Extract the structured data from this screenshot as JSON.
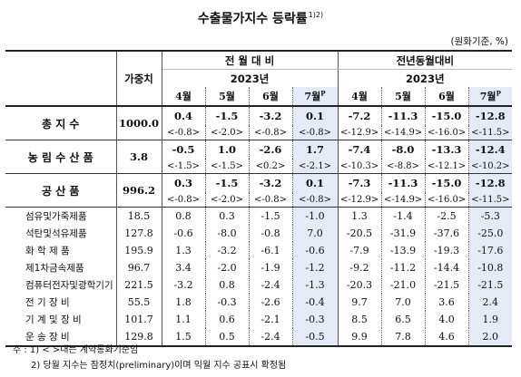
{
  "title": "수출물가지수 등락률",
  "title_sup": "1)2)",
  "unit": "(원화기준, %)",
  "header": {
    "weight_label": "가중치",
    "group1_label": "전 월 대 비",
    "group2_label": "전년동월대비",
    "year1": "2023년",
    "year2": "2023년",
    "months1": [
      "4월",
      "5월",
      "6월",
      "7월"
    ],
    "months2": [
      "4월",
      "5월",
      "6월",
      "7월"
    ],
    "prelim_mark": "P"
  },
  "main_rows": [
    {
      "name": "총 지 수",
      "weight": "1000.0",
      "mom": [
        "0.4",
        "-1.5",
        "-3.2",
        "0.1"
      ],
      "mom_prev": [
        "<-0.8>",
        "<-2.0>",
        "<-0.8>",
        "<-0.8>"
      ],
      "yoy": [
        "-7.2",
        "-11.3",
        "-15.0",
        "-12.8"
      ],
      "yoy_prev": [
        "<-12.9>",
        "<-14.9>",
        "<-16.0>",
        "<-11.5>"
      ]
    },
    {
      "name": "농 림 수 산 품",
      "weight": "3.8",
      "mom": [
        "-0.5",
        "1.0",
        "-2.6",
        "1.7"
      ],
      "mom_prev": [
        "<-1.5>",
        "<-1.5>",
        "<0.2>",
        "<-2.1>"
      ],
      "yoy": [
        "-7.4",
        "-8.0",
        "-13.3",
        "-12.4"
      ],
      "yoy_prev": [
        "<-10.3>",
        "<-8.8>",
        "<-12.1>",
        "<-10.2>"
      ]
    },
    {
      "name": "공 산 품",
      "weight": "996.2",
      "mom": [
        "0.3",
        "-1.5",
        "-3.2",
        "0.1"
      ],
      "mom_prev": [
        "<-0.8>",
        "<-2.0>",
        "<-0.8>",
        "<-0.8>"
      ],
      "yoy": [
        "-7.3",
        "-11.3",
        "-15.0",
        "-12.8"
      ],
      "yoy_prev": [
        "<-12.9>",
        "<-14.9>",
        "<-16.0>",
        "<-11.5>"
      ]
    }
  ],
  "sub_rows": [
    {
      "name": "섬유및가죽제품",
      "weight": "18.5",
      "mom": [
        "0.8",
        "0.3",
        "-1.5",
        "-1.0"
      ],
      "yoy": [
        "1.3",
        "-1.4",
        "-2.5",
        "-5.3"
      ]
    },
    {
      "name": "석탄및석유제품",
      "weight": "127.8",
      "mom": [
        "-0.6",
        "-8.0",
        "-0.8",
        "7.0"
      ],
      "yoy": [
        "-20.5",
        "-31.9",
        "-37.6",
        "-25.0"
      ]
    },
    {
      "name": "화 학 제 품",
      "weight": "195.9",
      "mom": [
        "1.3",
        "-3.2",
        "-6.1",
        "-0.6"
      ],
      "yoy": [
        "-7.9",
        "-13.9",
        "-19.3",
        "-17.6"
      ]
    },
    {
      "name": "제1차금속제품",
      "weight": "96.7",
      "mom": [
        "3.4",
        "-2.0",
        "-1.9",
        "-1.2"
      ],
      "yoy": [
        "-9.2",
        "-11.2",
        "-14.4",
        "-10.8"
      ]
    },
    {
      "name": "컴퓨터전자및광학기기",
      "weight": "221.5",
      "mom": [
        "-3.2",
        "0.8",
        "-2.4",
        "-1.3"
      ],
      "yoy": [
        "-20.3",
        "-21.0",
        "-21.5",
        "-21.5"
      ]
    },
    {
      "name": "전 기 장 비",
      "weight": "55.5",
      "mom": [
        "1.8",
        "-0.3",
        "-2.6",
        "-0.4"
      ],
      "yoy": [
        "9.7",
        "7.0",
        "3.6",
        "2.4"
      ]
    },
    {
      "name": "기 계 및 장 비",
      "weight": "101.7",
      "mom": [
        "1.1",
        "0.6",
        "-2.1",
        "-0.3"
      ],
      "yoy": [
        "8.5",
        "6.5",
        "4.0",
        "1.9"
      ]
    },
    {
      "name": "운 송 장 비",
      "weight": "129.8",
      "mom": [
        "1.5",
        "0.5",
        "-2.4",
        "-0.5"
      ],
      "yoy": [
        "9.9",
        "7.8",
        "4.6",
        "2.0"
      ]
    }
  ],
  "notes": {
    "note1": "주 : 1) < >내는 계약통화기준임",
    "note2": "2) 당월 지수는 잠정치(preliminary)이며 익월 지수 공표시 확정됨"
  },
  "colors": {
    "highlight": "#e4ebf7",
    "text": "#111111"
  }
}
